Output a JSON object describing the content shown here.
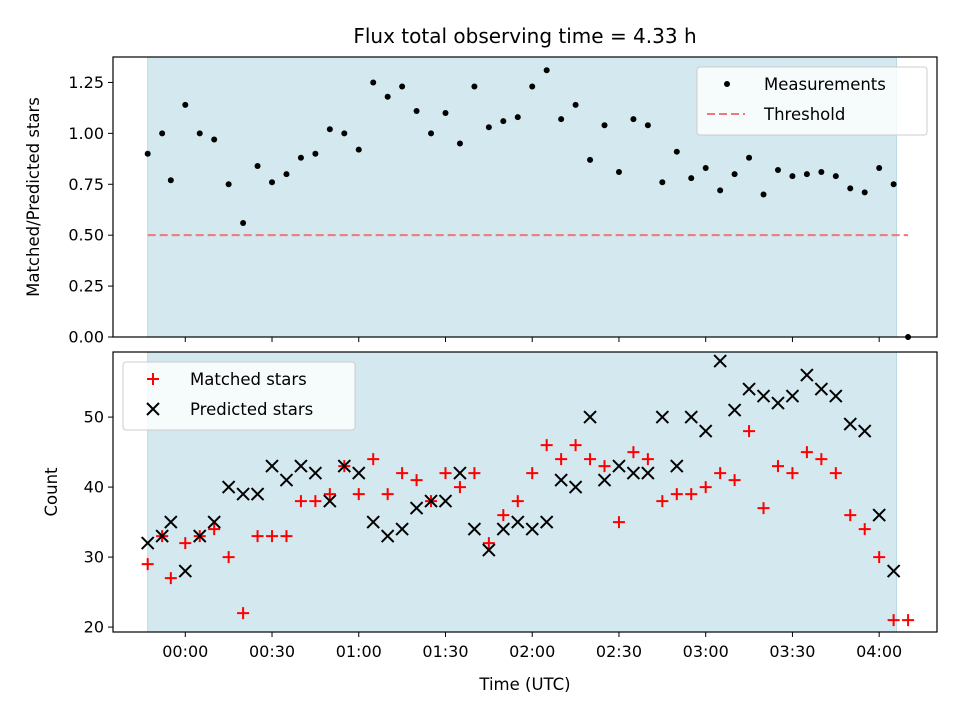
{
  "chart_data": [
    {
      "type": "scatter",
      "title": "Flux total observing time = 4.33 h",
      "ylabel": "Matched/Predicted stars",
      "xlabel": "",
      "ylim": [
        0,
        1.375
      ],
      "yticks": [
        0.0,
        0.25,
        0.5,
        0.75,
        1.0,
        1.25
      ],
      "ytick_labels": [
        "0.00",
        "0.25",
        "0.50",
        "0.75",
        "1.00",
        "1.25"
      ],
      "x_unit": "minutes_from_00:00",
      "xlim": [
        -25,
        260
      ],
      "shaded_span": [
        -13,
        246
      ],
      "shaded_color": "#d3e9ef",
      "legend": [
        "Measurements",
        "Threshold"
      ],
      "legend_position": "top-right",
      "threshold": {
        "name": "Threshold",
        "y": 0.5,
        "x_range": [
          -13,
          250
        ],
        "color": "#f07878",
        "style": "dashed"
      },
      "series": [
        {
          "name": "Measurements",
          "marker": "dot",
          "color": "#000000",
          "x": [
            -13,
            -8,
            -5,
            0,
            5,
            10,
            15,
            20,
            25,
            30,
            35,
            40,
            45,
            50,
            55,
            60,
            65,
            70,
            75,
            80,
            85,
            90,
            95,
            100,
            105,
            110,
            115,
            120,
            125,
            130,
            135,
            140,
            145,
            150,
            155,
            160,
            165,
            170,
            175,
            180,
            185,
            190,
            195,
            200,
            205,
            210,
            215,
            220,
            225,
            230,
            235,
            240,
            245,
            250
          ],
          "y": [
            0.9,
            1.0,
            0.77,
            1.14,
            1.0,
            0.97,
            0.75,
            0.56,
            0.84,
            0.76,
            0.8,
            0.88,
            0.9,
            1.02,
            1.0,
            0.92,
            1.25,
            1.18,
            1.23,
            1.11,
            1.0,
            1.1,
            0.95,
            1.23,
            1.03,
            1.06,
            1.08,
            1.23,
            1.31,
            1.07,
            1.14,
            0.87,
            1.04,
            0.81,
            1.07,
            1.04,
            0.76,
            0.91,
            0.78,
            0.83,
            0.72,
            0.8,
            0.88,
            0.7,
            0.82,
            0.79,
            0.8,
            0.81,
            0.79,
            0.73,
            0.71,
            0.83,
            0.75,
            0.0
          ]
        }
      ]
    },
    {
      "type": "scatter",
      "xlabel": "Time (UTC)",
      "ylabel": "Count",
      "ylim": [
        19.3,
        59.3
      ],
      "yticks": [
        20,
        30,
        40,
        50
      ],
      "ytick_labels": [
        "20",
        "30",
        "40",
        "50"
      ],
      "x_unit": "minutes_from_00:00",
      "xlim": [
        -25,
        260
      ],
      "xticks": [
        0,
        30,
        60,
        90,
        120,
        150,
        180,
        210,
        240
      ],
      "xtick_labels": [
        "00:00",
        "00:30",
        "01:00",
        "01:30",
        "02:00",
        "02:30",
        "03:00",
        "03:30",
        "04:00"
      ],
      "shaded_span": [
        -13,
        246
      ],
      "shaded_color": "#d3e9ef",
      "legend": [
        "Matched stars",
        "Predicted stars"
      ],
      "legend_position": "top-left",
      "series": [
        {
          "name": "Matched stars",
          "marker": "plus",
          "color": "#ff0000",
          "x": [
            -13,
            -8,
            -5,
            0,
            5,
            10,
            15,
            20,
            25,
            30,
            35,
            40,
            45,
            50,
            55,
            60,
            65,
            70,
            75,
            80,
            85,
            90,
            95,
            100,
            105,
            110,
            115,
            120,
            125,
            130,
            135,
            140,
            145,
            150,
            155,
            160,
            165,
            170,
            175,
            180,
            185,
            190,
            195,
            200,
            205,
            210,
            215,
            220,
            225,
            230,
            235,
            240,
            245,
            250
          ],
          "y": [
            29,
            33,
            27,
            32,
            33,
            34,
            30,
            22,
            33,
            33,
            33,
            38,
            38,
            39,
            43,
            39,
            44,
            39,
            42,
            41,
            38,
            42,
            40,
            42,
            32,
            36,
            38,
            42,
            46,
            44,
            46,
            44,
            43,
            35,
            45,
            44,
            38,
            39,
            39,
            40,
            42,
            41,
            48,
            37,
            43,
            42,
            45,
            44,
            42,
            36,
            34,
            30,
            21,
            21
          ]
        },
        {
          "name": "Predicted stars",
          "marker": "x",
          "color": "#000000",
          "x": [
            -13,
            -8,
            -5,
            0,
            5,
            10,
            15,
            20,
            25,
            30,
            35,
            40,
            45,
            50,
            55,
            60,
            65,
            70,
            75,
            80,
            85,
            90,
            95,
            100,
            105,
            110,
            115,
            120,
            125,
            130,
            135,
            140,
            145,
            150,
            155,
            160,
            165,
            170,
            175,
            180,
            185,
            190,
            195,
            200,
            205,
            210,
            215,
            220,
            225,
            230,
            235,
            240,
            245
          ],
          "y": [
            32,
            33,
            35,
            28,
            33,
            35,
            40,
            39,
            39,
            43,
            41,
            43,
            42,
            38,
            43,
            42,
            35,
            33,
            34,
            37,
            38,
            38,
            42,
            34,
            31,
            34,
            35,
            34,
            35,
            41,
            40,
            50,
            41,
            43,
            42,
            42,
            50,
            43,
            50,
            48,
            58,
            51,
            54,
            53,
            52,
            53,
            56,
            54,
            53,
            49,
            48,
            36,
            28
          ]
        }
      ]
    }
  ]
}
